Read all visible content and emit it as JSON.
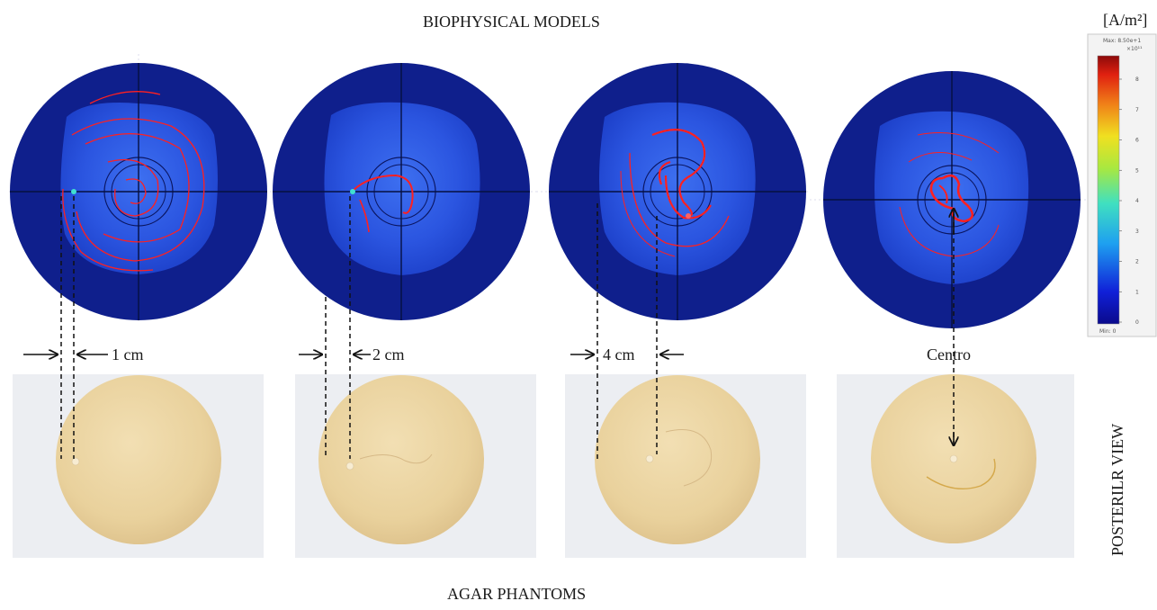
{
  "figure": {
    "top_title": "BIOPHYSICAL MODELS",
    "bottom_title": "AGAR PHANTOMS",
    "side_label": "POSTERILR VIEW",
    "colorbar": {
      "unit": "[A/m²]",
      "max_text": "Max: 8.50e+1",
      "exp_text": "×10¹¹",
      "min_text": "Min: 0",
      "ticks": [
        "8",
        "7",
        "6",
        "5",
        "4",
        "3",
        "2",
        "1",
        "0"
      ]
    },
    "panels": [
      {
        "label": "1 cm"
      },
      {
        "label": "2 cm"
      },
      {
        "label": "4 cm"
      },
      {
        "label": "Centro"
      }
    ],
    "colors": {
      "model_outer": "#0f1f8c",
      "model_inner": "#2f5ce8",
      "current_line": "#ff2020",
      "agar": "#ecd6a4",
      "tray": "#eceef2"
    }
  }
}
